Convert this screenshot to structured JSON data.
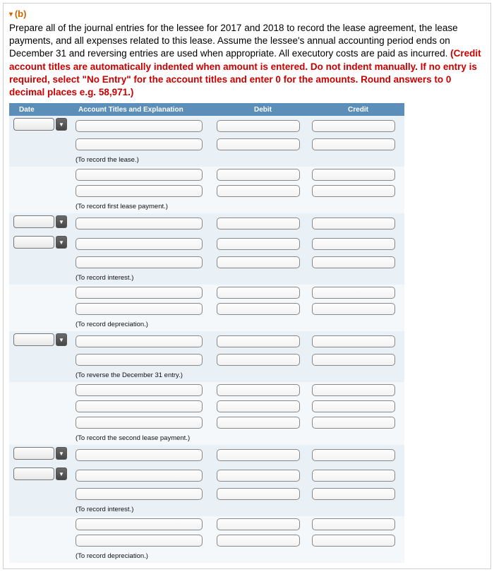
{
  "part_label": "(b)",
  "instructions_black": "Prepare all of the journal entries for the lessee for 2017 and 2018 to record the lease agreement, the lease payments, and all expenses related to this lease. Assume the lessee's annual accounting period ends on December 31 and reversing entries are used when appropriate. All executory costs are paid as incurred. ",
  "instructions_red": "(Credit account titles are automatically indented when amount is entered. Do not indent manually. If no entry is required, select \"No Entry\" for the account titles and enter 0 for the amounts. Round answers to 0 decimal places e.g. 58,971.)",
  "headers": {
    "date": "Date",
    "acct": "Account Titles and Explanation",
    "debit": "Debit",
    "credit": "Credit"
  },
  "captions": {
    "c1": "(To record the lease.)",
    "c2": "(To record first lease payment.)",
    "c3": "(To record interest.)",
    "c4": "(To record depreciation.)",
    "c5": "(To reverse the December 31 entry.)",
    "c6": "(To record the second lease payment.)",
    "c7": "(To record interest.)",
    "c8": "(To record depreciation.)"
  },
  "colors": {
    "header_bg": "#5b8fb9",
    "stripe_a": "#e9f1f7",
    "stripe_b": "#f4f8fb",
    "part_label": "#cc6600",
    "instr_red": "#cc0000"
  }
}
